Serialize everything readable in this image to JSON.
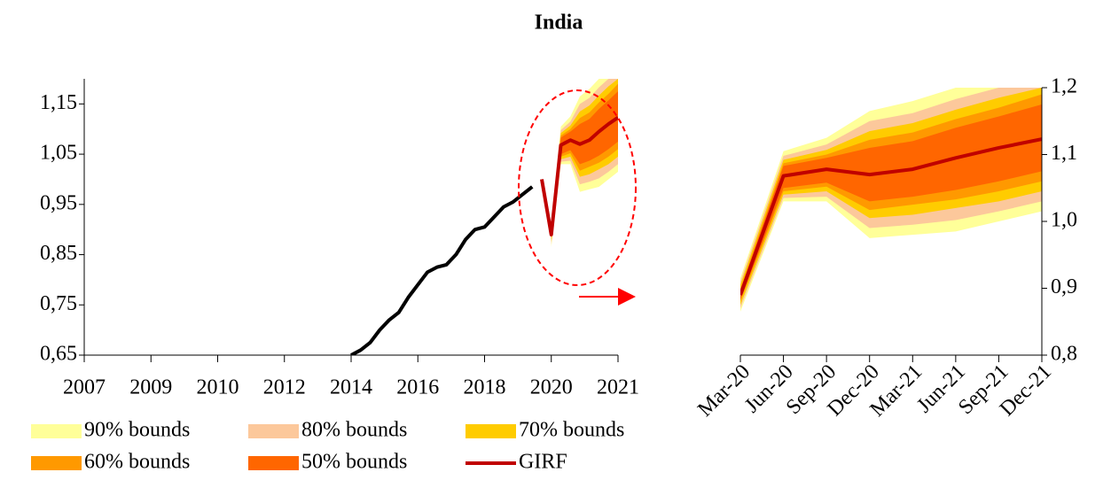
{
  "title": "India",
  "chart_data": [
    {
      "type": "line",
      "categories": [
        "2007",
        null,
        null,
        null,
        null,
        null,
        null,
        "2009",
        null,
        null,
        null,
        null,
        null,
        null,
        "2010",
        null,
        null,
        null,
        null,
        null,
        null,
        "2012",
        null,
        null,
        null,
        null,
        null,
        null,
        "2014",
        null,
        null,
        null,
        null,
        null,
        null,
        "2016",
        null,
        null,
        null,
        null,
        null,
        null,
        "2018",
        null,
        null,
        null,
        null,
        null,
        null,
        "2020",
        null,
        null,
        null,
        null,
        null,
        null,
        "2021"
      ],
      "series": [
        {
          "color": "#000000",
          "values": [
            null,
            null,
            null,
            null,
            null,
            null,
            null,
            null,
            null,
            null,
            null,
            null,
            null,
            null,
            null,
            null,
            null,
            null,
            null,
            null,
            null,
            null,
            null,
            null,
            null,
            null,
            null,
            null,
            0.65,
            0.66,
            0.675,
            0.7,
            0.72,
            0.735,
            0.765,
            0.79,
            0.815,
            0.825,
            0.83,
            0.85,
            0.88,
            0.9,
            0.905,
            0.925,
            0.945,
            0.955,
            0.97,
            0.985,
            null,
            null,
            null,
            null,
            null,
            null,
            null,
            null,
            null
          ]
        },
        {
          "color": "#c00000",
          "values": [
            null,
            null,
            null,
            null,
            null,
            null,
            null,
            null,
            null,
            null,
            null,
            null,
            null,
            null,
            null,
            null,
            null,
            null,
            null,
            null,
            null,
            null,
            null,
            null,
            null,
            null,
            null,
            null,
            null,
            null,
            null,
            null,
            null,
            null,
            null,
            null,
            null,
            null,
            null,
            null,
            null,
            null,
            null,
            null,
            null,
            null,
            null,
            null,
            1.0,
            0.89,
            1.068,
            1.078,
            1.07,
            1.078,
            1.095,
            1.11,
            1.123
          ]
        }
      ],
      "ylim": [
        0.65,
        1.2
      ],
      "yticks": [
        {
          "value": 0.65,
          "label": "0,65"
        },
        {
          "value": 0.75,
          "label": "0,75"
        },
        {
          "value": 0.85,
          "label": "0,85"
        },
        {
          "value": 0.95,
          "label": "0,95"
        },
        {
          "value": 1.05,
          "label": "1,05"
        },
        {
          "value": 1.15,
          "label": "1,15"
        }
      ]
    },
    {
      "type": "fan",
      "categories": [
        "Mar-20",
        "Jun-20",
        "Sep-20",
        "Dec-20",
        "Mar-21",
        "Jun-21",
        "Sep-21",
        "Dec-21"
      ],
      "bands": [
        {
          "name": "90% bounds",
          "color": "#ffff99",
          "lower": [
            0.865,
            1.03,
            1.03,
            0.975,
            0.98,
            0.985,
            1.0,
            1.015
          ],
          "upper": [
            0.915,
            1.105,
            1.125,
            1.165,
            1.18,
            1.2,
            1.2,
            1.2
          ]
        },
        {
          "name": "80% bounds",
          "color": "#fcc89b",
          "lower": [
            0.87,
            1.035,
            1.037,
            0.99,
            0.995,
            1.002,
            1.015,
            1.03
          ],
          "upper": [
            0.91,
            1.098,
            1.115,
            1.15,
            1.162,
            1.183,
            1.2,
            1.2
          ]
        },
        {
          "name": "70% bounds",
          "color": "#ffcc00",
          "lower": [
            0.875,
            1.04,
            1.045,
            1.005,
            1.01,
            1.02,
            1.03,
            1.045
          ],
          "upper": [
            0.905,
            1.092,
            1.107,
            1.135,
            1.147,
            1.167,
            1.185,
            1.2
          ]
        },
        {
          "name": "60% bounds",
          "color": "#ff9900",
          "lower": [
            0.88,
            1.045,
            1.052,
            1.017,
            1.025,
            1.033,
            1.045,
            1.06
          ],
          "upper": [
            0.9,
            1.087,
            1.1,
            1.122,
            1.133,
            1.153,
            1.17,
            1.19
          ]
        },
        {
          "name": "50% bounds",
          "color": "#ff6600",
          "lower": [
            0.883,
            1.05,
            1.058,
            1.03,
            1.037,
            1.047,
            1.06,
            1.075
          ],
          "upper": [
            0.897,
            1.083,
            1.095,
            1.11,
            1.12,
            1.14,
            1.157,
            1.175
          ]
        }
      ],
      "series": [
        {
          "name": "GIRF",
          "color": "#c00000",
          "values": [
            0.89,
            1.068,
            1.078,
            1.07,
            1.078,
            1.095,
            1.11,
            1.123
          ]
        }
      ],
      "ylim": [
        0.8,
        1.2
      ],
      "yticks": [
        {
          "value": 0.8,
          "label": "0,8"
        },
        {
          "value": 0.9,
          "label": "0,9"
        },
        {
          "value": 1.0,
          "label": "1,0"
        },
        {
          "value": 1.1,
          "label": "1,1"
        },
        {
          "value": 1.2,
          "label": "1,2"
        }
      ]
    }
  ]
}
